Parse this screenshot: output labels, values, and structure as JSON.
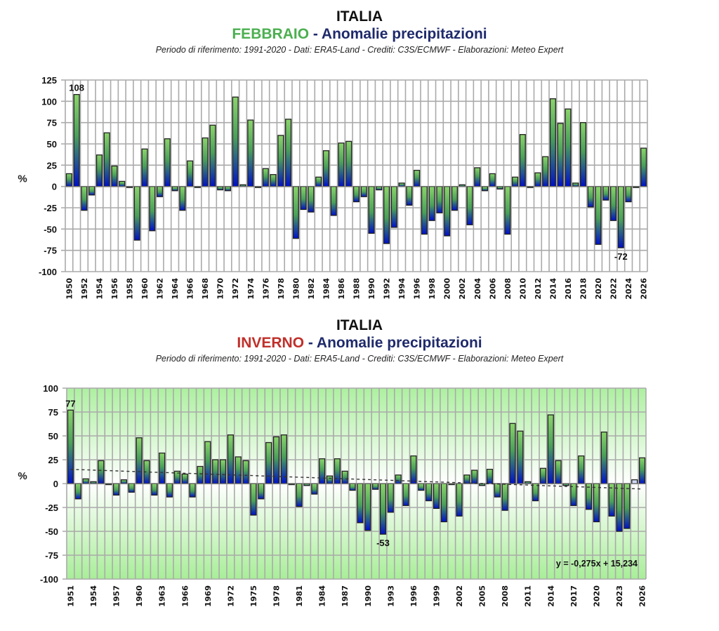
{
  "chart_data": [
    {
      "type": "bar",
      "id": "febbraio",
      "title_country": "ITALIA",
      "title_period": "FEBBRAIO",
      "title_rest": " - Anomalie precipitazioni",
      "subtitle": "Periodo di riferimento: 1991-2020 - Dati: ERA5-Land - Crediti: C3S/ECMWF - Elaborazioni: Meteo Expert",
      "ylabel": "%",
      "xlabel": "",
      "ylim": [
        -100,
        125
      ],
      "yticks": [
        125,
        100,
        75,
        50,
        25,
        0,
        -25,
        -50,
        -75,
        -100
      ],
      "grid": true,
      "x_start": 1950,
      "x_tick_step": 2,
      "x_tick_labels": [
        "1950",
        "1952",
        "1954",
        "1956",
        "1958",
        "1960",
        "1962",
        "1964",
        "1966",
        "1968",
        "1970",
        "1972",
        "1974",
        "1976",
        "1978",
        "1980",
        "1982",
        "1984",
        "1986",
        "1988",
        "1990",
        "1992",
        "1994",
        "1996",
        "1998",
        "2000",
        "2002",
        "2004",
        "2006",
        "2008",
        "2010",
        "2012",
        "2014",
        "2016",
        "2018",
        "2020",
        "2022",
        "2024",
        "2026"
      ],
      "values": [
        15,
        108,
        -28,
        -10,
        37,
        63,
        24,
        6,
        -1,
        -63,
        44,
        -52,
        -12,
        56,
        -5,
        -28,
        30,
        -1,
        57,
        72,
        -4,
        -5,
        105,
        2,
        78,
        -1,
        21,
        14,
        60,
        79,
        -61,
        -27,
        -30,
        11,
        42,
        -34,
        51,
        53,
        -18,
        -12,
        -55,
        -4,
        -67,
        -48,
        4,
        -22,
        19,
        -56,
        -40,
        -31,
        -58,
        -28,
        2,
        -45,
        22,
        -5,
        15,
        -3,
        -56,
        11,
        61,
        0,
        16,
        35,
        103,
        74,
        91,
        4,
        75,
        -24,
        -68,
        -16,
        -40,
        -72,
        -18,
        -1,
        45
      ],
      "annotations": [
        {
          "year": 1951,
          "text": "108"
        },
        {
          "year": 2023,
          "text": "-72"
        }
      ],
      "background": "plain"
    },
    {
      "type": "bar",
      "id": "inverno",
      "title_country": "ITALIA",
      "title_period": "INVERNO",
      "title_rest": " - Anomalie precipitazioni",
      "subtitle": "Periodo di riferimento: 1991-2020 - Dati: ERA5-Land - Crediti: C3S/ECMWF - Elaborazioni: Meteo Expert",
      "ylabel": "%",
      "xlabel": "",
      "ylim": [
        -100,
        100
      ],
      "yticks": [
        100,
        75,
        50,
        25,
        0,
        -25,
        -50,
        -75,
        -100
      ],
      "grid": true,
      "x_start": 1951,
      "x_tick_step": 3,
      "x_tick_labels": [
        "1951",
        "1954",
        "1957",
        "1960",
        "1963",
        "1966",
        "1969",
        "1972",
        "1975",
        "1978",
        "1981",
        "1984",
        "1987",
        "1990",
        "1993",
        "1996",
        "1999",
        "2002",
        "2005",
        "2008",
        "2011",
        "2014",
        "2017",
        "2020",
        "2023",
        "2026"
      ],
      "values": [
        77,
        -16,
        5,
        2,
        24,
        -1,
        -12,
        4,
        -9,
        48,
        24,
        -12,
        32,
        -14,
        13,
        10,
        -14,
        18,
        44,
        25,
        25,
        51,
        28,
        24,
        -33,
        -16,
        43,
        49,
        51,
        -1,
        -24,
        -2,
        -11,
        26,
        8,
        26,
        13,
        -7,
        -41,
        -49,
        -6,
        -53,
        -30,
        9,
        -23,
        29,
        -7,
        -18,
        -26,
        -40,
        -1,
        -34,
        9,
        14,
        -2,
        15,
        -14,
        -28,
        63,
        55,
        2,
        -18,
        16,
        72,
        24,
        -2,
        -23,
        29,
        -27,
        -40,
        54,
        -34,
        -50,
        -47,
        4,
        27
      ],
      "partial_years": [
        2025
      ],
      "annotations": [
        {
          "year": 1951,
          "text": "77"
        },
        {
          "year": 1992,
          "text": "-53"
        }
      ],
      "trendline": {
        "slope": -0.275,
        "intercept": 15.234,
        "label": "y = -0,275x + 15,234",
        "style": "dashed"
      },
      "background": "green-gradient"
    }
  ],
  "colors": {
    "bar_top": "#7fcd6a",
    "bar_bottom": "#0010c8",
    "bar_partial": "#cfd8f5",
    "grid": "#aaaaaa",
    "title_feb": "#4caf50",
    "title_inv": "#c0302a",
    "title_main": "#1f2a6b"
  }
}
